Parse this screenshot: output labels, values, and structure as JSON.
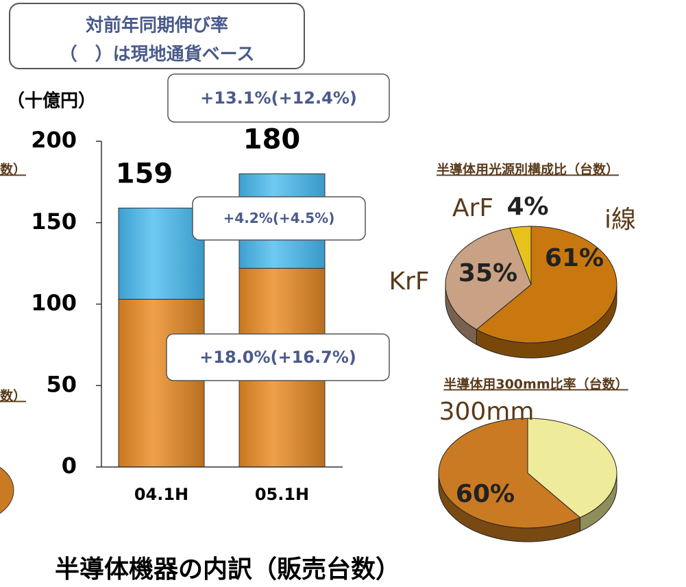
{
  "chart_data": [
    {
      "type": "bar",
      "stacked": true,
      "y_label": "（十億円）",
      "categories": [
        "04.1H",
        "05.1H"
      ],
      "series": [
        {
          "color": "#e0913a",
          "values": [
            103,
            122
          ]
        },
        {
          "color": "#5bbbe9",
          "values": [
            56,
            58
          ]
        }
      ],
      "totals": [
        159,
        180
      ],
      "ylim": [
        0,
        200
      ],
      "yticks": [
        0,
        50,
        100,
        150,
        200
      ],
      "annotations": [
        "+13.1%(+12.4%)",
        "+4.2%(+4.5%)",
        "+18.0%(+16.7%)"
      ]
    },
    {
      "type": "pie",
      "title": "半導体用光源別構成比（台数）",
      "categories": [
        "i線",
        "KrF",
        "ArF"
      ],
      "values": [
        61,
        35,
        4
      ],
      "value_labels": [
        "61%",
        "35%",
        "4%"
      ],
      "colors": [
        "#c9780f",
        "#c9a184",
        "#e8c21c"
      ]
    },
    {
      "type": "pie",
      "title": "半導体用300mm比率（台数）",
      "categories": [
        null,
        "300mm"
      ],
      "values": [
        40,
        60
      ],
      "value_labels": [
        null,
        "60%"
      ],
      "colors": [
        "#eeeb9a",
        "#c97a22"
      ]
    }
  ],
  "header": [
    "対前年同期伸び率",
    "（　）は現地通貨ベース"
  ],
  "caption": "半導体機器の内訳（販売台数）",
  "fragments": [
    "数）",
    "数）"
  ]
}
